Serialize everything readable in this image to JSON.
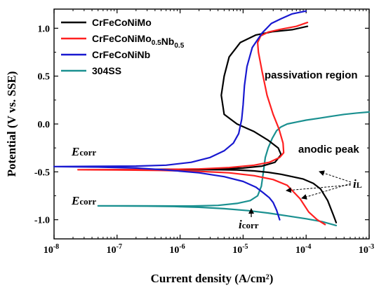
{
  "chart_data": {
    "type": "line",
    "xlabel": "Current density (A/cm²)",
    "ylabel": "Potential (V vs. SSE)",
    "xscale": "log",
    "xlim": [
      1e-08,
      0.001
    ],
    "ylim": [
      -1.2,
      1.2
    ],
    "grid": false,
    "legend_position": "top-left",
    "x_ticks": [
      {
        "value": 1e-08,
        "base": "10",
        "exp": "-8"
      },
      {
        "value": 1e-07,
        "base": "10",
        "exp": "-7"
      },
      {
        "value": 1e-06,
        "base": "10",
        "exp": "-6"
      },
      {
        "value": 1e-05,
        "base": "10",
        "exp": "-5"
      },
      {
        "value": 0.0001,
        "base": "10",
        "exp": "-4"
      },
      {
        "value": 0.001,
        "base": "10",
        "exp": "-3"
      }
    ],
    "y_ticks": [
      {
        "value": -1.0,
        "label": "-1.0"
      },
      {
        "value": -0.5,
        "label": "-0.5"
      },
      {
        "value": 0.0,
        "label": "0.0"
      },
      {
        "value": 0.5,
        "label": "0.5"
      },
      {
        "value": 1.0,
        "label": "1.0"
      }
    ],
    "series": [
      {
        "name": "CrFeCoNiMo",
        "legend_parts": [
          {
            "text": "CrFeCoNiMo",
            "sub": ""
          }
        ],
        "color": "#000000",
        "x": [
          0.0003,
          0.00027,
          0.00022,
          0.00017,
          0.00013,
          9e-05,
          6e-05,
          4e-05,
          2.5e-05,
          1.5e-05,
          8e-06,
          4e-06,
          2e-06,
          1e-06,
          5e-07,
          3.5e-07,
          6e-07,
          1.5e-06,
          4e-06,
          1e-05,
          2e-05,
          3.2e-05,
          4e-05,
          3.6e-05,
          2.5e-05,
          1.5e-05,
          8e-06,
          5e-06,
          4.5e-06,
          5e-06,
          6e-06,
          9e-06,
          1.6e-05,
          3e-05,
          6e-05,
          0.000105
        ],
        "y": [
          -1.03,
          -0.95,
          -0.8,
          -0.68,
          -0.62,
          -0.575,
          -0.55,
          -0.525,
          -0.505,
          -0.49,
          -0.48,
          -0.478,
          -0.477,
          -0.476,
          -0.475,
          -0.474,
          -0.473,
          -0.472,
          -0.47,
          -0.46,
          -0.44,
          -0.4,
          -0.32,
          -0.25,
          -0.17,
          -0.08,
          0.0,
          0.1,
          0.3,
          0.5,
          0.7,
          0.85,
          0.93,
          0.965,
          0.985,
          1.02
        ]
      },
      {
        "name": "CrFeCoNiMo0.5Nb0.5",
        "legend_parts": [
          {
            "text": "CrFeCoNiMo",
            "sub": "0.5"
          },
          {
            "text": "Nb",
            "sub": "0.5"
          }
        ],
        "color": "#ff2020",
        "x": [
          0.0002,
          0.00015,
          0.00011,
          8e-05,
          5e-05,
          3e-05,
          1.5e-05,
          6e-06,
          2e-06,
          5e-07,
          1e-07,
          2.4e-08,
          1e-07,
          5e-07,
          2e-06,
          6e-06,
          1.5e-05,
          2.6e-05,
          3.8e-05,
          4.4e-05,
          4.3e-05,
          3.7e-05,
          3e-05,
          2.4e-05,
          2e-05,
          1.75e-05,
          1.7e-05,
          1.9e-05,
          2.5e-05,
          4e-05,
          7e-05,
          0.000105
        ],
        "y": [
          -1.05,
          -1.0,
          -0.92,
          -0.78,
          -0.64,
          -0.58,
          -0.54,
          -0.51,
          -0.495,
          -0.485,
          -0.48,
          -0.478,
          -0.476,
          -0.475,
          -0.47,
          -0.455,
          -0.43,
          -0.4,
          -0.35,
          -0.3,
          -0.2,
          -0.05,
          0.1,
          0.3,
          0.55,
          0.75,
          0.85,
          0.92,
          0.96,
          0.99,
          1.02,
          1.06
        ]
      },
      {
        "name": "CrFeCoNiNb",
        "legend_parts": [
          {
            "text": "CrFeCoNiNb",
            "sub": ""
          }
        ],
        "color": "#1818d0",
        "x": [
          3.8e-05,
          3.4e-05,
          3e-05,
          2.6e-05,
          2.1e-05,
          1.6e-05,
          1e-05,
          5e-06,
          2e-06,
          6e-07,
          2e-07,
          5e-08,
          1e-08,
          2e-07,
          6e-07,
          1.5e-06,
          3e-06,
          5e-06,
          7e-06,
          8.5e-06,
          9.5e-06,
          1e-05,
          1.05e-05,
          1.15e-05,
          1.4e-05,
          2e-05,
          2.8e-05,
          4e-05,
          6e-05,
          0.0001
        ],
        "y": [
          -1.0,
          -0.9,
          -0.82,
          -0.77,
          -0.72,
          -0.66,
          -0.6,
          -0.55,
          -0.51,
          -0.48,
          -0.46,
          -0.45,
          -0.445,
          -0.44,
          -0.43,
          -0.4,
          -0.35,
          -0.28,
          -0.2,
          -0.1,
          0.05,
          0.2,
          0.4,
          0.6,
          0.8,
          0.95,
          1.05,
          1.1,
          1.15,
          1.18
        ]
      },
      {
        "name": "304SS",
        "legend_parts": [
          {
            "text": "304SS",
            "sub": ""
          }
        ],
        "color": "#1a9090",
        "x": [
          0.0003,
          0.00018,
          0.0001,
          5e-05,
          2.5e-05,
          1.2e-05,
          5e-06,
          2e-06,
          8e-07,
          3e-07,
          1e-07,
          5e-08,
          1.5e-07,
          5e-07,
          1.5e-06,
          4e-06,
          8e-06,
          1.3e-05,
          1.7e-05,
          1.95e-05,
          2.1e-05,
          2.25e-05,
          2.5e-05,
          2.9e-05,
          3.4e-05,
          4e-05,
          5e-05,
          7e-05,
          0.0001,
          0.00016,
          0.00025,
          0.0004,
          0.00065,
          0.001
        ],
        "y": [
          -1.06,
          -1.02,
          -0.99,
          -0.96,
          -0.93,
          -0.905,
          -0.885,
          -0.87,
          -0.862,
          -0.858,
          -0.856,
          -0.855,
          -0.855,
          -0.856,
          -0.857,
          -0.85,
          -0.83,
          -0.8,
          -0.75,
          -0.65,
          -0.5,
          -0.35,
          -0.25,
          -0.15,
          -0.07,
          -0.03,
          0.0,
          0.02,
          0.04,
          0.06,
          0.08,
          0.1,
          0.115,
          0.125
        ]
      }
    ]
  },
  "annotations": {
    "passivation": "passivation region",
    "anodic_peak": "anodic peak",
    "ecorr_1": {
      "main": "E",
      "sub": "corr"
    },
    "ecorr_2": {
      "main": "E",
      "sub": "corr"
    },
    "icorr": {
      "main": "i",
      "sub": "corr"
    },
    "il": {
      "main": "i",
      "sub": "L"
    }
  }
}
